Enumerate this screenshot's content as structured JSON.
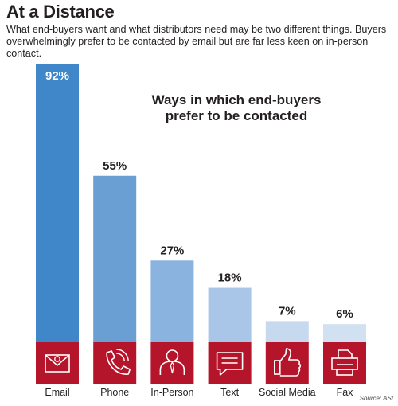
{
  "header": {
    "title": "At a Distance",
    "subtitle": "What end-buyers want and what distributors need may be two different things. Buyers overwhelmingly prefer to be contacted by email but are far less keen on in-person contact."
  },
  "source": "Source: ASI",
  "chart_data": {
    "type": "bar",
    "title": "Ways in which end-buyers prefer to be contacted",
    "categories": [
      "Email",
      "Phone",
      "In-Person",
      "Text",
      "Social Media",
      "Fax"
    ],
    "values": [
      92,
      55,
      27,
      18,
      7,
      6
    ],
    "value_labels": [
      "92%",
      "55%",
      "27%",
      "18%",
      "7%",
      "6%"
    ],
    "icons": [
      "envelope-icon",
      "phone-icon",
      "person-icon",
      "chat-bubble-icon",
      "thumbs-up-icon",
      "fax-icon"
    ],
    "unit": "%",
    "ylim": [
      0,
      92
    ],
    "grid": false,
    "colors": {
      "bars": [
        "#3f87c8",
        "#6a9fd4",
        "#8ab3df",
        "#a9c6e8",
        "#c6d9ef",
        "#d2e1f2"
      ],
      "icon_box": "#b5152b",
      "icon_line": "#ffffff",
      "label_on_bar": "#ffffff",
      "label": "#231f20"
    }
  }
}
